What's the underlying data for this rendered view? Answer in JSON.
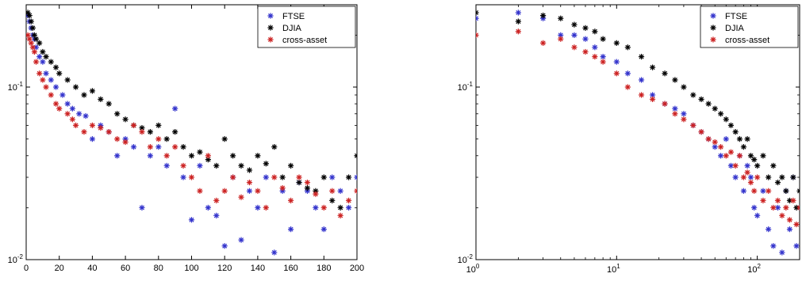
{
  "chart_data": [
    {
      "type": "scatter",
      "x_scale": "linear",
      "y_scale": "log",
      "xlim": [
        0,
        200
      ],
      "ylim": [
        0.01,
        0.3
      ],
      "x_ticks": [
        0,
        20,
        40,
        60,
        80,
        100,
        120,
        140,
        160,
        180,
        200
      ],
      "x_tick_labels": [
        "0",
        "20",
        "40",
        "60",
        "80",
        "100",
        "120",
        "140",
        "160",
        "180",
        "200"
      ],
      "y_ticks": [
        0.01,
        0.1
      ],
      "y_tick_labels": [
        {
          "base": "10",
          "exp": "-2"
        },
        {
          "base": "10",
          "exp": "-1"
        }
      ],
      "legend": {
        "position": "top-right",
        "entries": [
          "FTSE",
          "DJIA",
          "cross-asset"
        ]
      },
      "grid": false,
      "series": [
        {
          "name": "FTSE",
          "color": "#3333cc",
          "marker": "asterisk",
          "x": [
            1,
            2,
            3,
            4,
            5,
            6,
            8,
            10,
            12,
            15,
            18,
            22,
            25,
            28,
            32,
            36,
            40,
            45,
            50,
            55,
            60,
            65,
            70,
            75,
            80,
            85,
            90,
            95,
            100,
            105,
            110,
            115,
            120,
            125,
            130,
            135,
            140,
            145,
            150,
            155,
            160,
            165,
            170,
            175,
            180,
            185,
            190,
            195,
            200
          ],
          "y": [
            0.26,
            0.24,
            0.22,
            0.2,
            0.19,
            0.17,
            0.15,
            0.14,
            0.12,
            0.11,
            0.1,
            0.09,
            0.08,
            0.075,
            0.07,
            0.068,
            0.05,
            0.06,
            0.055,
            0.04,
            0.05,
            0.045,
            0.02,
            0.04,
            0.045,
            0.035,
            0.075,
            0.03,
            0.017,
            0.035,
            0.02,
            0.018,
            0.012,
            0.03,
            0.013,
            0.025,
            0.02,
            0.03,
            0.011,
            0.025,
            0.015,
            0.028,
            0.025,
            0.02,
            0.015,
            0.03,
            0.025,
            0.02,
            0.03
          ]
        },
        {
          "name": "DJIA",
          "color": "#000000",
          "marker": "asterisk",
          "x": [
            1,
            2,
            3,
            4,
            5,
            6,
            8,
            10,
            12,
            15,
            18,
            20,
            25,
            30,
            35,
            40,
            45,
            50,
            55,
            60,
            65,
            70,
            75,
            80,
            85,
            90,
            95,
            100,
            105,
            110,
            115,
            120,
            125,
            130,
            135,
            140,
            145,
            150,
            155,
            160,
            165,
            170,
            175,
            180,
            185,
            190,
            195,
            200
          ],
          "y": [
            0.27,
            0.26,
            0.24,
            0.22,
            0.2,
            0.19,
            0.18,
            0.16,
            0.15,
            0.14,
            0.13,
            0.12,
            0.11,
            0.1,
            0.09,
            0.095,
            0.085,
            0.08,
            0.07,
            0.065,
            0.06,
            0.058,
            0.055,
            0.06,
            0.05,
            0.055,
            0.045,
            0.04,
            0.042,
            0.038,
            0.035,
            0.05,
            0.04,
            0.035,
            0.033,
            0.04,
            0.036,
            0.045,
            0.03,
            0.035,
            0.028,
            0.026,
            0.025,
            0.03,
            0.022,
            0.02,
            0.03,
            0.04
          ]
        },
        {
          "name": "cross-asset",
          "color": "#cc2222",
          "marker": "asterisk",
          "x": [
            1,
            2,
            3,
            4,
            5,
            6,
            8,
            10,
            12,
            15,
            18,
            20,
            25,
            28,
            30,
            35,
            40,
            45,
            50,
            55,
            60,
            65,
            70,
            75,
            80,
            85,
            90,
            95,
            100,
            105,
            110,
            115,
            120,
            125,
            130,
            135,
            140,
            145,
            150,
            155,
            160,
            165,
            170,
            175,
            180,
            185,
            190,
            195,
            200
          ],
          "y": [
            0.2,
            0.19,
            0.18,
            0.17,
            0.16,
            0.14,
            0.12,
            0.11,
            0.1,
            0.09,
            0.08,
            0.075,
            0.07,
            0.065,
            0.06,
            0.055,
            0.06,
            0.058,
            0.055,
            0.05,
            0.048,
            0.06,
            0.055,
            0.045,
            0.05,
            0.04,
            0.045,
            0.035,
            0.03,
            0.025,
            0.04,
            0.022,
            0.025,
            0.03,
            0.023,
            0.028,
            0.025,
            0.02,
            0.03,
            0.026,
            0.022,
            0.03,
            0.028,
            0.024,
            0.02,
            0.025,
            0.018,
            0.022,
            0.025
          ]
        }
      ]
    },
    {
      "type": "scatter",
      "x_scale": "log",
      "y_scale": "log",
      "xlim": [
        1,
        200
      ],
      "ylim": [
        0.01,
        0.3
      ],
      "x_ticks": [
        1,
        10,
        100
      ],
      "x_tick_labels": [
        {
          "base": "10",
          "exp": "0"
        },
        {
          "base": "10",
          "exp": "1"
        },
        {
          "base": "10",
          "exp": "2"
        }
      ],
      "y_ticks": [
        0.01,
        0.1
      ],
      "y_tick_labels": [
        {
          "base": "10",
          "exp": "-2"
        },
        {
          "base": "10",
          "exp": "-1"
        }
      ],
      "legend": {
        "position": "top-right",
        "entries": [
          "FTSE",
          "DJIA",
          "cross-asset"
        ]
      },
      "grid": false,
      "series": [
        {
          "name": "FTSE",
          "color": "#3333cc",
          "marker": "asterisk",
          "x": [
            1,
            2,
            3,
            4,
            5,
            6,
            7,
            8,
            10,
            12,
            15,
            18,
            22,
            26,
            30,
            35,
            40,
            45,
            50,
            55,
            60,
            65,
            70,
            75,
            80,
            85,
            90,
            95,
            100,
            110,
            120,
            130,
            140,
            150,
            160,
            170,
            180,
            190,
            200
          ],
          "y": [
            0.25,
            0.27,
            0.25,
            0.2,
            0.2,
            0.19,
            0.17,
            0.15,
            0.14,
            0.12,
            0.11,
            0.09,
            0.08,
            0.075,
            0.07,
            0.06,
            0.055,
            0.05,
            0.045,
            0.04,
            0.05,
            0.035,
            0.03,
            0.04,
            0.025,
            0.035,
            0.03,
            0.02,
            0.018,
            0.025,
            0.015,
            0.012,
            0.02,
            0.011,
            0.025,
            0.015,
            0.03,
            0.012,
            0.02
          ]
        },
        {
          "name": "DJIA",
          "color": "#000000",
          "marker": "asterisk",
          "x": [
            1,
            2,
            3,
            4,
            5,
            6,
            7,
            8,
            10,
            12,
            15,
            18,
            22,
            26,
            30,
            35,
            40,
            45,
            50,
            55,
            60,
            65,
            70,
            75,
            80,
            85,
            90,
            95,
            100,
            110,
            120,
            130,
            140,
            150,
            160,
            170,
            180,
            190,
            200
          ],
          "y": [
            0.27,
            0.24,
            0.26,
            0.25,
            0.23,
            0.22,
            0.21,
            0.19,
            0.18,
            0.17,
            0.15,
            0.13,
            0.12,
            0.11,
            0.1,
            0.09,
            0.085,
            0.08,
            0.075,
            0.07,
            0.065,
            0.06,
            0.055,
            0.05,
            0.045,
            0.05,
            0.04,
            0.038,
            0.035,
            0.04,
            0.03,
            0.035,
            0.028,
            0.03,
            0.025,
            0.022,
            0.03,
            0.02,
            0.025
          ]
        },
        {
          "name": "cross-asset",
          "color": "#cc2222",
          "marker": "asterisk",
          "x": [
            1,
            2,
            3,
            4,
            5,
            6,
            7,
            8,
            10,
            12,
            15,
            18,
            22,
            26,
            30,
            35,
            40,
            45,
            50,
            55,
            60,
            65,
            70,
            75,
            80,
            85,
            90,
            95,
            100,
            110,
            120,
            130,
            140,
            150,
            160,
            170,
            180,
            190,
            200
          ],
          "y": [
            0.2,
            0.21,
            0.18,
            0.19,
            0.17,
            0.16,
            0.15,
            0.14,
            0.12,
            0.1,
            0.09,
            0.085,
            0.08,
            0.07,
            0.065,
            0.06,
            0.055,
            0.05,
            0.048,
            0.045,
            0.04,
            0.042,
            0.035,
            0.04,
            0.03,
            0.032,
            0.028,
            0.025,
            0.03,
            0.022,
            0.025,
            0.02,
            0.022,
            0.018,
            0.02,
            0.017,
            0.022,
            0.016,
            0.02
          ]
        }
      ]
    }
  ]
}
